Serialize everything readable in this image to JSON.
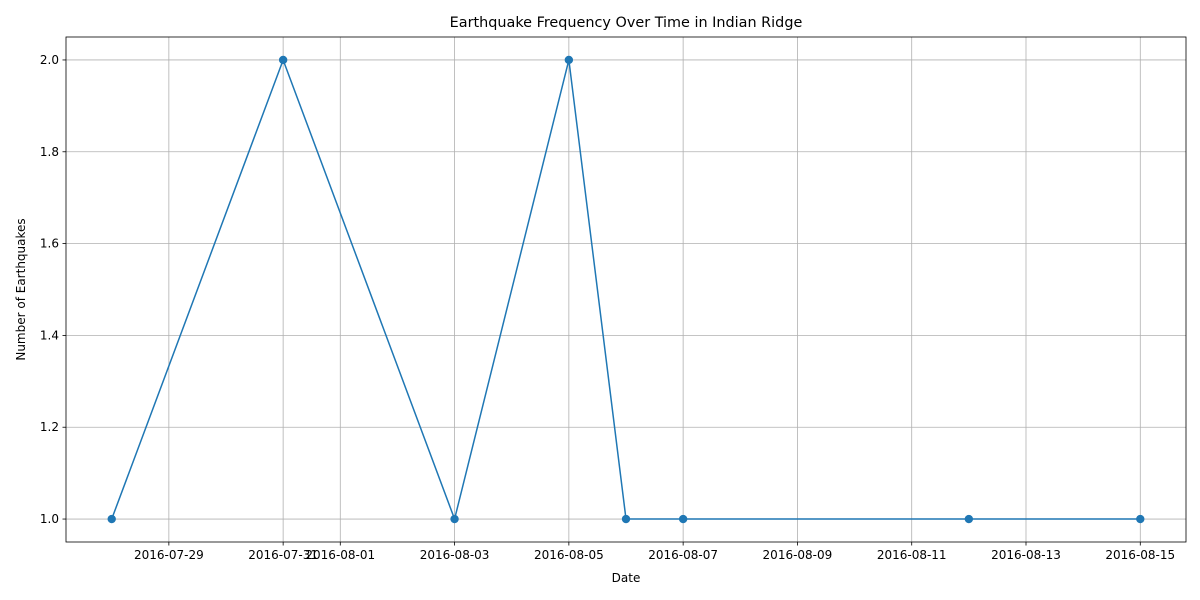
{
  "chart_data": {
    "type": "line",
    "title": "Earthquake Frequency Over Time in Indian Ridge",
    "xlabel": "Date",
    "ylabel": "Number of Earthquakes",
    "x": [
      "2016-07-28",
      "2016-07-31",
      "2016-08-03",
      "2016-08-05",
      "2016-08-06",
      "2016-08-07",
      "2016-08-12",
      "2016-08-15"
    ],
    "series": [
      {
        "values": [
          1,
          2,
          1,
          2,
          1,
          1,
          1,
          1
        ],
        "color": "#1f77b4",
        "marker": "circle"
      }
    ],
    "xlim": [
      "2016-07-27T04:48",
      "2016-08-15T19:12"
    ],
    "ylim": [
      0.95,
      2.05
    ],
    "xticks": [
      "2016-07-29",
      "2016-07-31",
      "2016-08-01",
      "2016-08-03",
      "2016-08-05",
      "2016-08-07",
      "2016-08-09",
      "2016-08-11",
      "2016-08-13",
      "2016-08-15"
    ],
    "yticks": [
      1.0,
      1.2,
      1.4,
      1.6,
      1.8,
      2.0
    ],
    "grid": true,
    "legend": "none"
  }
}
